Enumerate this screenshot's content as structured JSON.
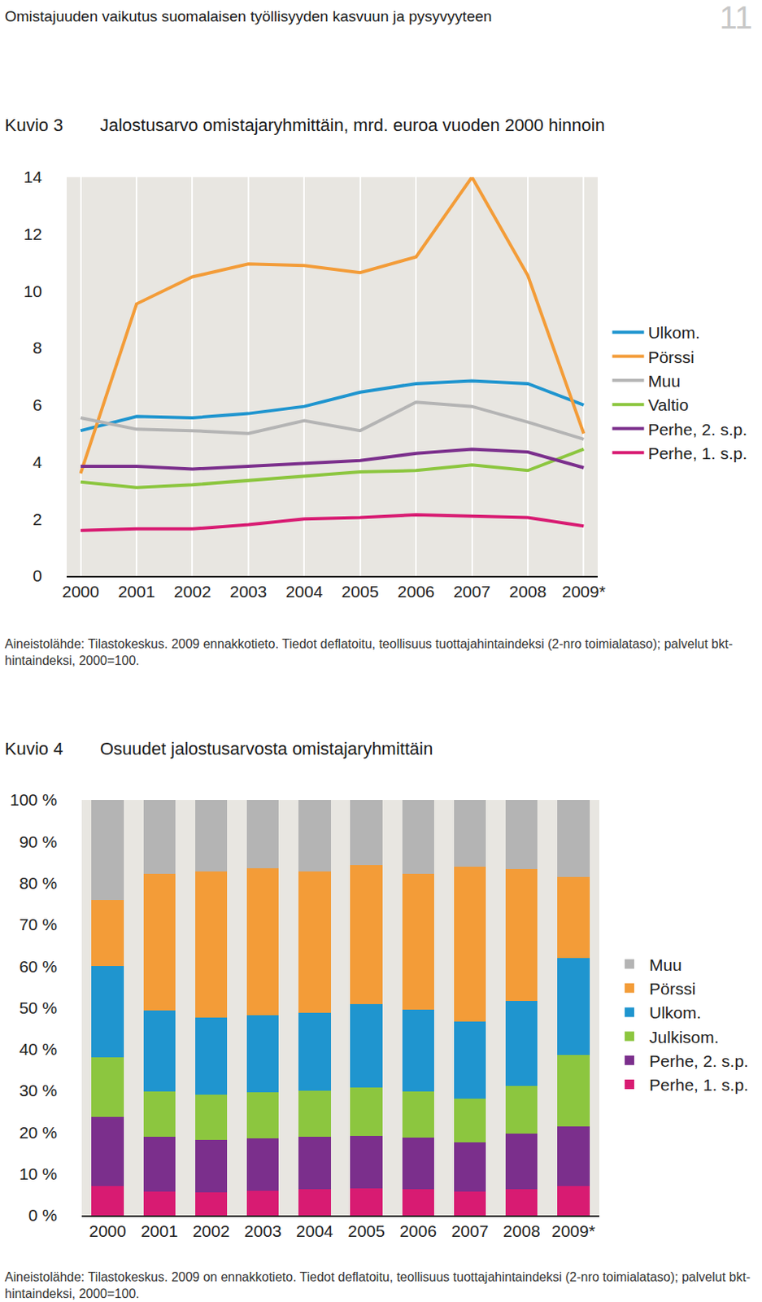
{
  "page": {
    "header": "Omistajuuden vaikutus suomalaisen työllisyyden kasvuun ja pysyvyyteen",
    "page_number": "11"
  },
  "chart_data": [
    {
      "type": "line",
      "figure_label": "Kuvio 3",
      "title": "Jalostusarvo omistajaryhmittäin, mrd. euroa vuoden 2000 hinnoin",
      "note": "Aineistolähde: Tilastokeskus. 2009 ennakkotieto. Tiedot deflatoitu, teollisuus tuottajahintaindeksi (2-nro toimialataso); palvelut bkt-hintaindeksi, 2000=100.",
      "categories": [
        "2000",
        "2001",
        "2002",
        "2003",
        "2004",
        "2005",
        "2006",
        "2007",
        "2008",
        "2009*"
      ],
      "series": [
        {
          "name": "Ulkom.",
          "color": "#1f95cf",
          "values": [
            5.1,
            5.6,
            5.55,
            5.7,
            5.95,
            6.45,
            6.75,
            6.85,
            6.75,
            6.0
          ]
        },
        {
          "name": "Pörssi",
          "color": "#f39c38",
          "values": [
            3.6,
            9.55,
            10.5,
            10.95,
            10.9,
            10.65,
            11.2,
            14.0,
            10.55,
            5.0
          ]
        },
        {
          "name": "Muu",
          "color": "#b4b4b4",
          "values": [
            5.55,
            5.15,
            5.1,
            5.0,
            5.45,
            5.1,
            6.1,
            5.95,
            5.4,
            4.8
          ]
        },
        {
          "name": "Valtio",
          "color": "#8cc63f",
          "values": [
            3.3,
            3.1,
            3.2,
            3.35,
            3.5,
            3.65,
            3.7,
            3.9,
            3.7,
            4.45
          ]
        },
        {
          "name": "Perhe, 2. s.p.",
          "color": "#7b2f8c",
          "values": [
            3.85,
            3.85,
            3.75,
            3.85,
            3.95,
            4.05,
            4.3,
            4.45,
            4.35,
            3.8
          ]
        },
        {
          "name": "Perhe, 1. s.p.",
          "color": "#d81b72",
          "values": [
            1.6,
            1.65,
            1.65,
            1.8,
            2.0,
            2.05,
            2.15,
            2.1,
            2.05,
            1.75
          ]
        }
      ],
      "ylim": [
        0,
        14
      ],
      "yticks": [
        0,
        2,
        4,
        6,
        8,
        10,
        12,
        14
      ],
      "grid": true,
      "legend": "right"
    },
    {
      "type": "bar",
      "stacked": true,
      "figure_label": "Kuvio 4",
      "title": "Osuudet jalostusarvosta omistajaryhmittäin",
      "note": "Aineistolähde: Tilastokeskus. 2009 on ennakkotieto. Tiedot deflatoitu, teollisuus tuottajahintaindeksi (2-nro toimialataso); palvelut bkt-hintaindeksi, 2000=100.",
      "categories": [
        "2000",
        "2001",
        "2002",
        "2003",
        "2004",
        "2005",
        "2006",
        "2007",
        "2008",
        "2009*"
      ],
      "series": [
        {
          "name": "Perhe, 1. s.p.",
          "color": "#d81b72",
          "values": [
            7.0,
            5.7,
            5.5,
            5.9,
            6.3,
            6.5,
            6.3,
            5.7,
            6.3,
            7.0
          ]
        },
        {
          "name": "Perhe, 2. s.p.",
          "color": "#7b2f8c",
          "values": [
            16.7,
            13.3,
            12.7,
            12.7,
            12.7,
            12.7,
            12.5,
            11.9,
            13.3,
            14.5
          ]
        },
        {
          "name": "Julkisom.",
          "color": "#8cc63f",
          "values": [
            14.3,
            10.9,
            10.8,
            11.1,
            11.1,
            11.5,
            11.1,
            10.6,
            11.5,
            17.2
          ]
        },
        {
          "name": "Ulkom.",
          "color": "#1f95cf",
          "values": [
            22.1,
            19.4,
            18.6,
            18.4,
            18.6,
            20.2,
            19.6,
            18.4,
            20.6,
            23.3
          ]
        },
        {
          "name": "Pörssi",
          "color": "#f39c38",
          "values": [
            15.8,
            32.9,
            35.2,
            35.5,
            34.1,
            33.4,
            32.7,
            37.4,
            31.7,
            19.4
          ]
        },
        {
          "name": "Muu",
          "color": "#b4b4b4",
          "values": [
            24.1,
            17.8,
            17.2,
            16.4,
            17.2,
            15.7,
            17.8,
            16.0,
            16.6,
            18.6
          ]
        }
      ],
      "ylim": [
        0,
        100
      ],
      "yticks": [
        {
          "value": 0,
          "label": "0 %"
        },
        {
          "value": 10,
          "label": "10 %"
        },
        {
          "value": 20,
          "label": "20 %"
        },
        {
          "value": 30,
          "label": "30 %"
        },
        {
          "value": 40,
          "label": "40 %"
        },
        {
          "value": 50,
          "label": "50 %"
        },
        {
          "value": 60,
          "label": "60 %"
        },
        {
          "value": 70,
          "label": "70 %"
        },
        {
          "value": 80,
          "label": "80 %"
        },
        {
          "value": 90,
          "label": "90 %"
        },
        {
          "value": 100,
          "label": "100 %"
        }
      ],
      "grid": false,
      "legend": "right"
    }
  ]
}
